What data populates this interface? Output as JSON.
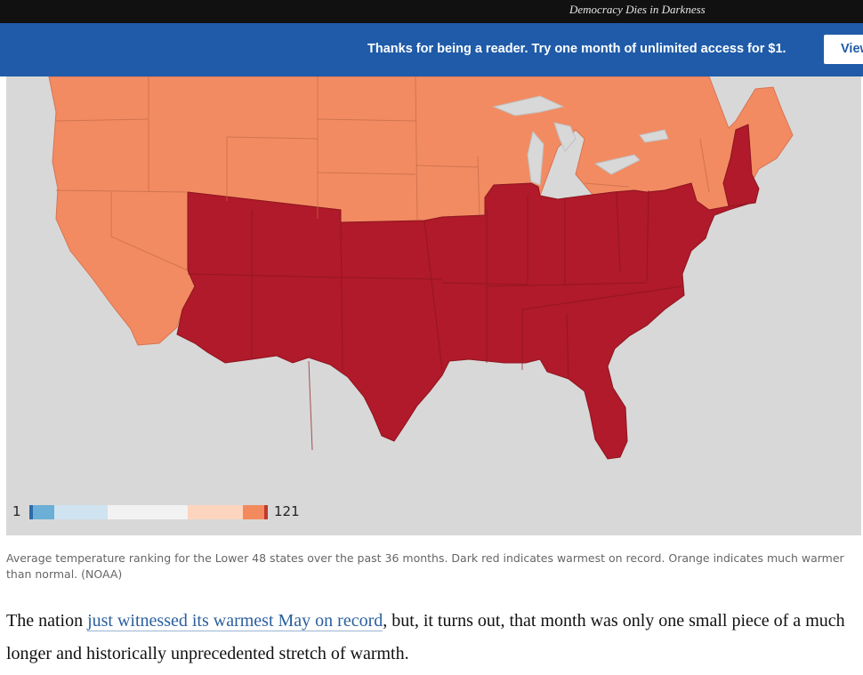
{
  "masthead": {
    "tagline": "Democracy Dies in Darkness"
  },
  "promo": {
    "message": "Thanks for being a reader. Try one month of unlimited access for $1.",
    "button_label": "View"
  },
  "map": {
    "legend": {
      "min_label": "1",
      "max_label": "121",
      "swatches": [
        "#2e6aa8",
        "#6baed6",
        "#cfe3f1",
        "#f2f2f2",
        "#fdd5bf",
        "#f28a5e",
        "#c0392b"
      ]
    },
    "colors": {
      "warmest_on_record": "#b01a2a",
      "much_warmer": "#f28b62",
      "background": "#d8d8d8",
      "lakes": "#d8d8d8"
    }
  },
  "caption": "Average temperature ranking for the Lower 48 states over the past 36 months. Dark red indicates warmest on record. Orange indicates much warmer than normal. (NOAA)",
  "article": {
    "text_before": "The nation ",
    "link_text": "just witnessed its warmest May on record",
    "text_after": ", but, it turns out, that month was only one small piece of a much longer and historically unprecedented stretch of warmth."
  }
}
